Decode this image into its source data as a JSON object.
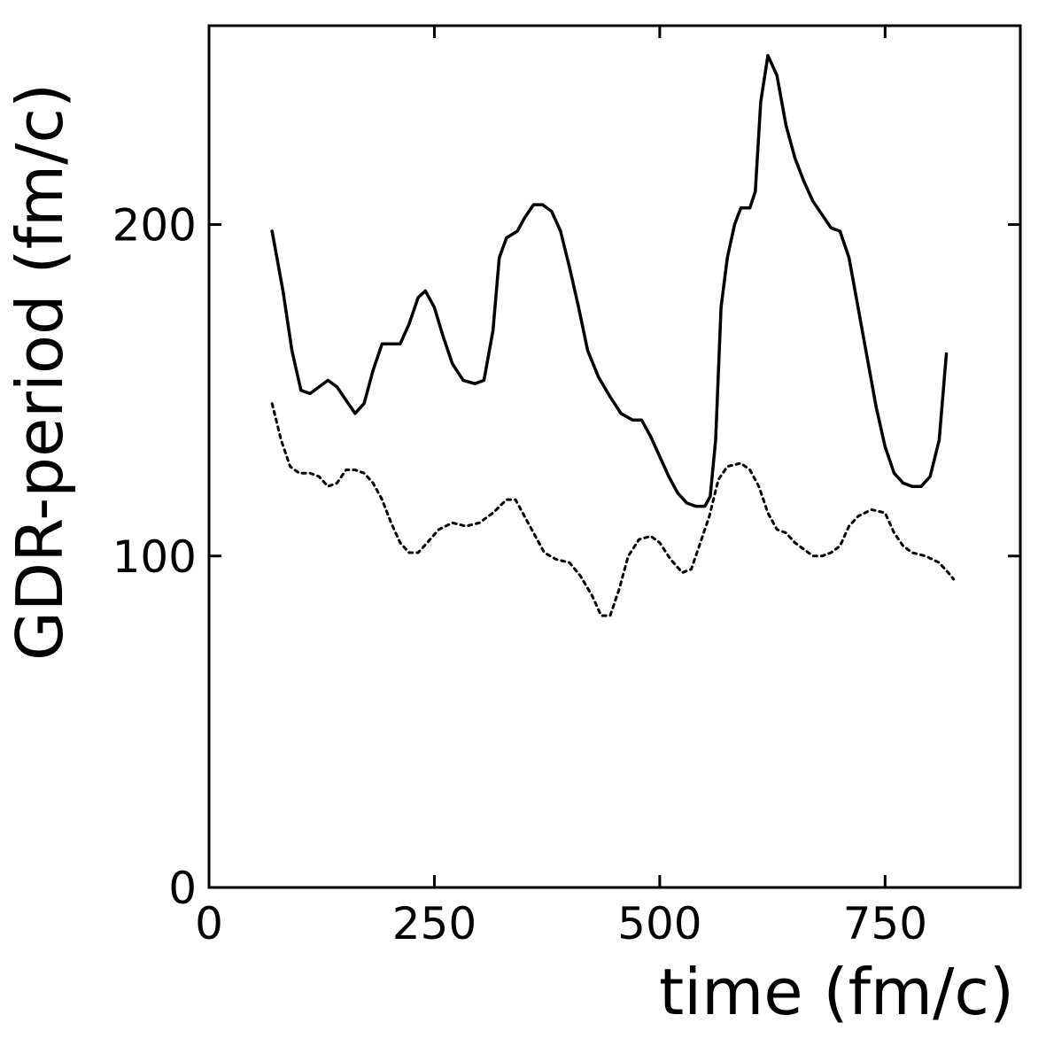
{
  "chart_data": {
    "type": "line",
    "title": "",
    "xlabel": "time (fm/c)",
    "ylabel": "GDR-period (fm/c)",
    "xlim": [
      0,
      900
    ],
    "ylim": [
      0,
      260
    ],
    "x_ticks": [
      {
        "value": 0,
        "label": "0"
      },
      {
        "value": 250,
        "label": "250"
      },
      {
        "value": 500,
        "label": "500"
      },
      {
        "value": 750,
        "label": "750"
      }
    ],
    "y_ticks": [
      {
        "value": 0,
        "label": "0"
      },
      {
        "value": 100,
        "label": "100"
      },
      {
        "value": 200,
        "label": "200"
      }
    ],
    "grid": false,
    "legend": "none",
    "series": [
      {
        "style": "solid",
        "color": "#000000",
        "points": [
          [
            70,
            198
          ],
          [
            82,
            180
          ],
          [
            92,
            162
          ],
          [
            102,
            150
          ],
          [
            112,
            149
          ],
          [
            122,
            151
          ],
          [
            132,
            153
          ],
          [
            142,
            151
          ],
          [
            152,
            147
          ],
          [
            162,
            143
          ],
          [
            172,
            146
          ],
          [
            182,
            156
          ],
          [
            192,
            164
          ],
          [
            202,
            164
          ],
          [
            212,
            164
          ],
          [
            222,
            170
          ],
          [
            232,
            178
          ],
          [
            240,
            180
          ],
          [
            250,
            175
          ],
          [
            260,
            166
          ],
          [
            270,
            158
          ],
          [
            282,
            153
          ],
          [
            295,
            152
          ],
          [
            305,
            153
          ],
          [
            315,
            168
          ],
          [
            322,
            190
          ],
          [
            330,
            196
          ],
          [
            342,
            198
          ],
          [
            350,
            202
          ],
          [
            360,
            206
          ],
          [
            370,
            206
          ],
          [
            380,
            204
          ],
          [
            390,
            198
          ],
          [
            400,
            187
          ],
          [
            410,
            175
          ],
          [
            420,
            162
          ],
          [
            432,
            154
          ],
          [
            445,
            148
          ],
          [
            457,
            143
          ],
          [
            470,
            141
          ],
          [
            480,
            141
          ],
          [
            490,
            136
          ],
          [
            500,
            130
          ],
          [
            510,
            124
          ],
          [
            520,
            119
          ],
          [
            530,
            116
          ],
          [
            540,
            115
          ],
          [
            550,
            115
          ],
          [
            556,
            118
          ],
          [
            562,
            135
          ],
          [
            568,
            175
          ],
          [
            575,
            190
          ],
          [
            583,
            200
          ],
          [
            590,
            205
          ],
          [
            600,
            205
          ],
          [
            606,
            210
          ],
          [
            612,
            237
          ],
          [
            620,
            251
          ],
          [
            630,
            245
          ],
          [
            640,
            230
          ],
          [
            650,
            220
          ],
          [
            660,
            213
          ],
          [
            670,
            207
          ],
          [
            680,
            203
          ],
          [
            690,
            199
          ],
          [
            700,
            198
          ],
          [
            710,
            190
          ],
          [
            720,
            175
          ],
          [
            730,
            160
          ],
          [
            740,
            145
          ],
          [
            750,
            133
          ],
          [
            760,
            125
          ],
          [
            770,
            122
          ],
          [
            780,
            121
          ],
          [
            790,
            121
          ],
          [
            800,
            124
          ],
          [
            810,
            135
          ],
          [
            818,
            161
          ]
        ]
      },
      {
        "style": "dotted",
        "color": "#000000",
        "points": [
          [
            70,
            146
          ],
          [
            80,
            135
          ],
          [
            90,
            127
          ],
          [
            100,
            125
          ],
          [
            112,
            125
          ],
          [
            122,
            124
          ],
          [
            132,
            121
          ],
          [
            142,
            122
          ],
          [
            152,
            126
          ],
          [
            162,
            126
          ],
          [
            172,
            125
          ],
          [
            182,
            122
          ],
          [
            192,
            117
          ],
          [
            202,
            110
          ],
          [
            212,
            104
          ],
          [
            222,
            101
          ],
          [
            232,
            101
          ],
          [
            242,
            104
          ],
          [
            255,
            108
          ],
          [
            270,
            110
          ],
          [
            285,
            109
          ],
          [
            300,
            110
          ],
          [
            315,
            113
          ],
          [
            330,
            117
          ],
          [
            340,
            117
          ],
          [
            350,
            112
          ],
          [
            360,
            107
          ],
          [
            372,
            101
          ],
          [
            385,
            99
          ],
          [
            400,
            98
          ],
          [
            412,
            94
          ],
          [
            425,
            88
          ],
          [
            435,
            82
          ],
          [
            445,
            82
          ],
          [
            455,
            90
          ],
          [
            465,
            100
          ],
          [
            477,
            105
          ],
          [
            490,
            106
          ],
          [
            500,
            104
          ],
          [
            512,
            99
          ],
          [
            525,
            95
          ],
          [
            535,
            96
          ],
          [
            545,
            104
          ],
          [
            555,
            112
          ],
          [
            565,
            123
          ],
          [
            575,
            127
          ],
          [
            590,
            128
          ],
          [
            600,
            126
          ],
          [
            610,
            121
          ],
          [
            620,
            113
          ],
          [
            630,
            108
          ],
          [
            640,
            107
          ],
          [
            650,
            104
          ],
          [
            660,
            102
          ],
          [
            670,
            100
          ],
          [
            680,
            100
          ],
          [
            690,
            101
          ],
          [
            700,
            103
          ],
          [
            710,
            109
          ],
          [
            720,
            112
          ],
          [
            735,
            114
          ],
          [
            750,
            113
          ],
          [
            760,
            107
          ],
          [
            770,
            103
          ],
          [
            780,
            101
          ],
          [
            795,
            100
          ],
          [
            810,
            98
          ],
          [
            820,
            95
          ],
          [
            826,
            93
          ]
        ]
      }
    ]
  }
}
